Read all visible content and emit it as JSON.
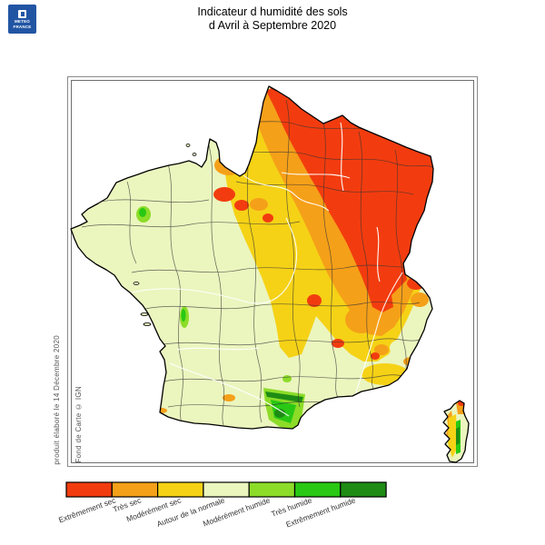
{
  "header": {
    "title_line1": "Indicateur d humidité des sols",
    "title_line2": "d Avril à Septembre 2020"
  },
  "logo": {
    "brand_line1": "METEO",
    "brand_line2": "FRANCE",
    "background_color": "#2155A4"
  },
  "side_notes": {
    "produced": "produit élaboré le 14 Décembre 2020",
    "credit": "Fond de Carte © IGN"
  },
  "legend": {
    "categories": [
      {
        "label": "Extrêmement sec",
        "color": "#F23C0F"
      },
      {
        "label": "Très sec",
        "color": "#F5A019"
      },
      {
        "label": "Modérément sec",
        "color": "#F5D216"
      },
      {
        "label": "Autour de la normale",
        "color": "#EBF5BE"
      },
      {
        "label": "Modérément humide",
        "color": "#8CDC28"
      },
      {
        "label": "Très humide",
        "color": "#28C814"
      },
      {
        "label": "Extrêmement humide",
        "color": "#1E8C14"
      }
    ]
  },
  "map": {
    "palette": {
      "near_normal": "#EBF5BE",
      "moderately_dry": "#F5D216",
      "very_dry": "#F5A019",
      "extremely_dry": "#F23C0F",
      "moderately_wet": "#8CDC28",
      "very_wet": "#28C814",
      "extremely_wet": "#1E8C14",
      "outline": "#000000",
      "department_line": "#333333",
      "river": "#FFFFFF"
    }
  }
}
